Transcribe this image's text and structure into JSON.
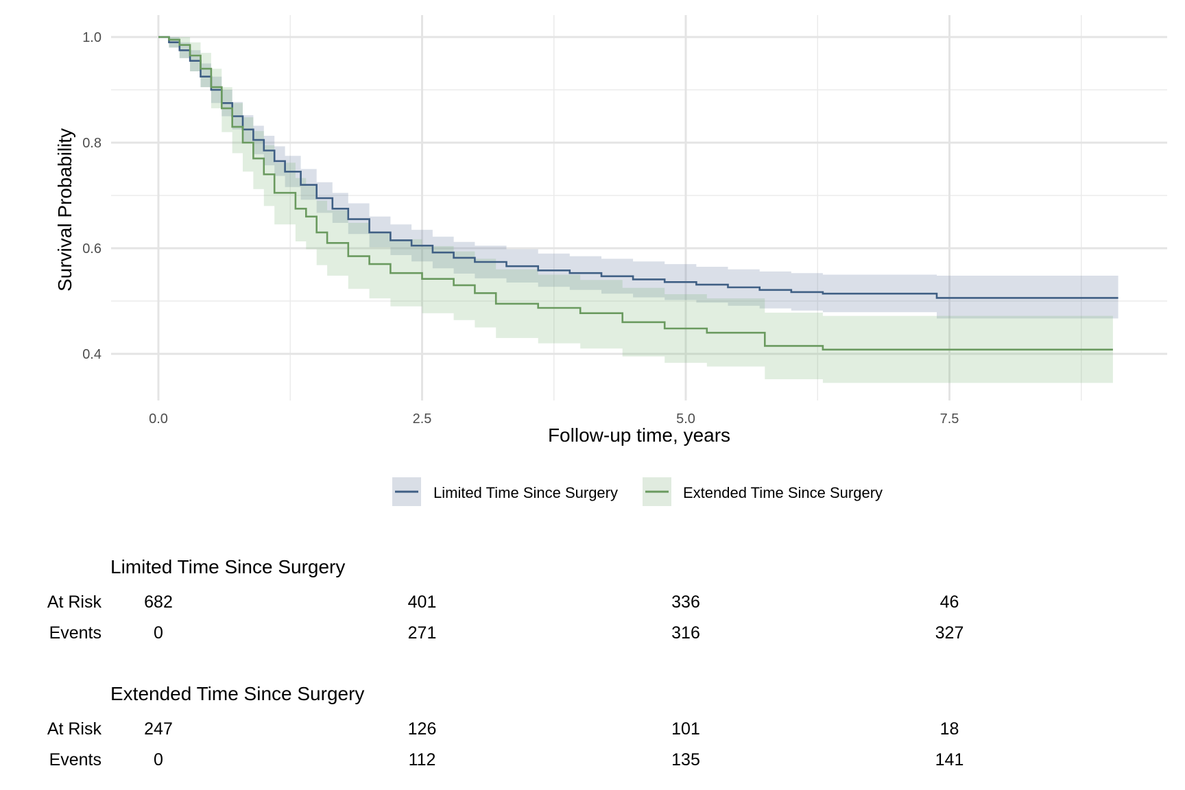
{
  "chart_data": {
    "type": "line",
    "subtype": "kaplan-meier-step",
    "title": "",
    "xlabel": "Follow-up time, years",
    "ylabel": "Survival Probability",
    "xlim": [
      -0.45,
      9.55
    ],
    "ylim": [
      0.32,
      1.04
    ],
    "x_ticks": [
      0,
      2.5,
      5,
      7.5
    ],
    "x_tick_labels": [
      "0.0",
      "2.5",
      "5.0",
      "7.5"
    ],
    "x_minor_grid": [
      1.25,
      3.75,
      6.25,
      8.75
    ],
    "y_ticks": [
      0.4,
      0.6,
      0.8,
      1.0
    ],
    "y_tick_labels": [
      "0.4",
      "0.6",
      "0.8",
      "1.0"
    ],
    "y_minor_grid": [
      0.5,
      0.7,
      0.9
    ],
    "grid": true,
    "legend_position": "bottom",
    "series": [
      {
        "name": "Limited Time Since Surgery",
        "color": "#3f5f84",
        "ci_color": "#d9dee6",
        "x": [
          0,
          0.1,
          0.2,
          0.3,
          0.4,
          0.5,
          0.6,
          0.7,
          0.8,
          0.9,
          1.0,
          1.1,
          1.2,
          1.35,
          1.5,
          1.65,
          1.8,
          2.0,
          2.2,
          2.4,
          2.6,
          2.8,
          3.0,
          3.3,
          3.6,
          3.9,
          4.2,
          4.5,
          4.8,
          5.1,
          5.4,
          5.7,
          6.0,
          6.3,
          7.0,
          7.38,
          9.1
        ],
        "y": [
          1.0,
          0.99,
          0.975,
          0.955,
          0.925,
          0.9,
          0.875,
          0.85,
          0.825,
          0.805,
          0.785,
          0.765,
          0.745,
          0.72,
          0.695,
          0.675,
          0.655,
          0.63,
          0.615,
          0.605,
          0.592,
          0.582,
          0.574,
          0.566,
          0.558,
          0.553,
          0.547,
          0.541,
          0.536,
          0.531,
          0.526,
          0.521,
          0.517,
          0.514,
          0.514,
          0.506,
          0.506
        ],
        "lower": [
          1.0,
          0.98,
          0.96,
          0.935,
          0.905,
          0.875,
          0.85,
          0.825,
          0.8,
          0.778,
          0.757,
          0.737,
          0.716,
          0.692,
          0.667,
          0.648,
          0.627,
          0.602,
          0.587,
          0.575,
          0.562,
          0.552,
          0.543,
          0.535,
          0.527,
          0.521,
          0.514,
          0.507,
          0.502,
          0.497,
          0.491,
          0.486,
          0.482,
          0.479,
          0.479,
          0.467,
          0.467
        ],
        "upper": [
          1.0,
          1.0,
          0.99,
          0.975,
          0.95,
          0.925,
          0.9,
          0.877,
          0.852,
          0.832,
          0.813,
          0.793,
          0.775,
          0.75,
          0.725,
          0.705,
          0.685,
          0.66,
          0.645,
          0.635,
          0.622,
          0.612,
          0.605,
          0.598,
          0.59,
          0.585,
          0.58,
          0.575,
          0.57,
          0.565,
          0.56,
          0.556,
          0.553,
          0.55,
          0.55,
          0.548,
          0.548
        ]
      },
      {
        "name": "Extended Time Since Surgery",
        "color": "#6a9a5f",
        "ci_color": "#e0ebdf",
        "x": [
          0,
          0.1,
          0.2,
          0.3,
          0.4,
          0.5,
          0.6,
          0.7,
          0.8,
          0.9,
          1.0,
          1.1,
          1.3,
          1.4,
          1.5,
          1.6,
          1.8,
          2.0,
          2.2,
          2.5,
          2.8,
          3.0,
          3.2,
          3.6,
          4.0,
          4.4,
          4.8,
          5.2,
          5.6,
          5.75,
          6.3,
          9.05
        ],
        "y": [
          1.0,
          0.995,
          0.985,
          0.965,
          0.94,
          0.905,
          0.865,
          0.83,
          0.8,
          0.77,
          0.74,
          0.705,
          0.675,
          0.66,
          0.63,
          0.61,
          0.585,
          0.57,
          0.553,
          0.542,
          0.53,
          0.515,
          0.495,
          0.487,
          0.477,
          0.46,
          0.448,
          0.44,
          0.44,
          0.415,
          0.408,
          0.408
        ],
        "lower": [
          1.0,
          0.98,
          0.96,
          0.935,
          0.905,
          0.865,
          0.82,
          0.78,
          0.745,
          0.712,
          0.68,
          0.645,
          0.613,
          0.598,
          0.568,
          0.548,
          0.523,
          0.505,
          0.49,
          0.477,
          0.464,
          0.45,
          0.43,
          0.42,
          0.41,
          0.395,
          0.383,
          0.376,
          0.376,
          0.352,
          0.345,
          0.345
        ],
        "upper": [
          1.0,
          1.0,
          1.0,
          0.99,
          0.97,
          0.94,
          0.905,
          0.875,
          0.848,
          0.822,
          0.795,
          0.762,
          0.733,
          0.718,
          0.69,
          0.672,
          0.648,
          0.632,
          0.617,
          0.604,
          0.594,
          0.58,
          0.56,
          0.55,
          0.54,
          0.525,
          0.513,
          0.505,
          0.505,
          0.478,
          0.472,
          0.472
        ]
      }
    ]
  },
  "legend": {
    "items": [
      {
        "label": "Limited Time Since Surgery",
        "color": "#3f5f84",
        "fill": "#d9dee6"
      },
      {
        "label": "Extended Time Since Surgery",
        "color": "#6a9a5f",
        "fill": "#e0ebdf"
      }
    ]
  },
  "risk_table": {
    "times": [
      0,
      2.5,
      5,
      7.5
    ],
    "row_labels": {
      "at_risk": "At Risk",
      "events": "Events"
    },
    "groups": [
      {
        "title": "Limited Time Since Surgery",
        "at_risk": [
          "682",
          "401",
          "336",
          "46"
        ],
        "events": [
          "0",
          "271",
          "316",
          "327"
        ]
      },
      {
        "title": "Extended Time Since Surgery",
        "at_risk": [
          "247",
          "126",
          "101",
          "18"
        ],
        "events": [
          "0",
          "112",
          "135",
          "141"
        ]
      }
    ]
  }
}
